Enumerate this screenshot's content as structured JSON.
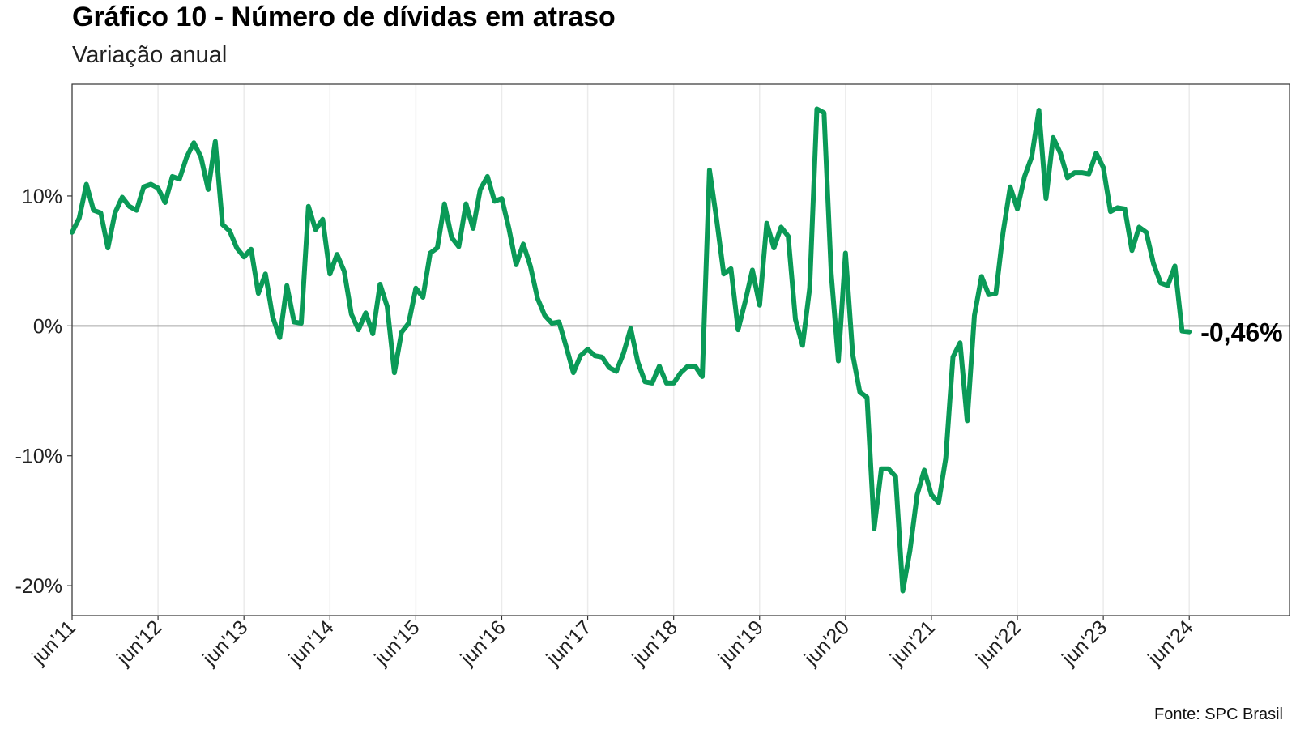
{
  "chart_data": {
    "type": "line",
    "title": "Gráfico 10 - Número de dívidas em atraso",
    "subtitle": "Variação anual",
    "source": "Fonte: SPC Brasil",
    "xlabel": "",
    "ylabel": "",
    "x_ticks": [
      "jun'11",
      "jun'12",
      "jun'13",
      "jun'14",
      "jun'15",
      "jun'16",
      "jun'17",
      "jun'18",
      "jun'19",
      "jun'20",
      "jun'21",
      "jun'22",
      "jun'23",
      "jun'24"
    ],
    "y_ticks": [
      {
        "value": 10,
        "label": "10%"
      },
      {
        "value": 0,
        "label": "0%"
      },
      {
        "value": -10,
        "label": "-10%"
      },
      {
        "value": -20,
        "label": "-20%"
      }
    ],
    "ylim": [
      -22.3,
      18.6
    ],
    "xlim": [
      "2011-06",
      "2025-08"
    ],
    "grid": true,
    "zero_line": true,
    "line_color": "#0a9a57",
    "end_label": "-0,46%",
    "series": [
      {
        "x": [
          "2011-06",
          "2011-07",
          "2011-08",
          "2011-09",
          "2011-10",
          "2011-11",
          "2011-12",
          "2012-01",
          "2012-02",
          "2012-03",
          "2012-04",
          "2012-05",
          "2012-06",
          "2012-07",
          "2012-08",
          "2012-09",
          "2012-10",
          "2012-11",
          "2012-12",
          "2013-01",
          "2013-02",
          "2013-03",
          "2013-04",
          "2013-05",
          "2013-06",
          "2013-07",
          "2013-08",
          "2013-09",
          "2013-10",
          "2013-11",
          "2013-12",
          "2014-01",
          "2014-02",
          "2014-03",
          "2014-04",
          "2014-05",
          "2014-06",
          "2014-07",
          "2014-08",
          "2014-09",
          "2014-10",
          "2014-11",
          "2014-12",
          "2015-01",
          "2015-02",
          "2015-03",
          "2015-04",
          "2015-05",
          "2015-06",
          "2015-07",
          "2015-08",
          "2015-09",
          "2015-10",
          "2015-11",
          "2015-12",
          "2016-01",
          "2016-02",
          "2016-03",
          "2016-04",
          "2016-05",
          "2016-06",
          "2016-07",
          "2016-08",
          "2016-09",
          "2016-10",
          "2016-11",
          "2016-12",
          "2017-01",
          "2017-02",
          "2017-03",
          "2017-04",
          "2017-05",
          "2017-06",
          "2017-07",
          "2017-08",
          "2017-09",
          "2017-10",
          "2017-11",
          "2017-12",
          "2018-01",
          "2018-02",
          "2018-03",
          "2018-04",
          "2018-05",
          "2018-06",
          "2018-07",
          "2018-08",
          "2018-09",
          "2018-10",
          "2018-11",
          "2018-12",
          "2019-01",
          "2019-02",
          "2019-03",
          "2019-04",
          "2019-05",
          "2019-06",
          "2019-07",
          "2019-08",
          "2019-09",
          "2019-10",
          "2019-11",
          "2019-12",
          "2020-01",
          "2020-02",
          "2020-03",
          "2020-04",
          "2020-05",
          "2020-06",
          "2020-07",
          "2020-08",
          "2020-09",
          "2020-10",
          "2020-11",
          "2020-12",
          "2021-01",
          "2021-02",
          "2021-03",
          "2021-04",
          "2021-05",
          "2021-06",
          "2021-07",
          "2021-08",
          "2021-09",
          "2021-10",
          "2021-11",
          "2021-12",
          "2022-01",
          "2022-02",
          "2022-03",
          "2022-04",
          "2022-05",
          "2022-06",
          "2022-07",
          "2022-08",
          "2022-09",
          "2022-10",
          "2022-11",
          "2022-12",
          "2023-01",
          "2023-02",
          "2023-03",
          "2023-04",
          "2023-05",
          "2023-06",
          "2023-07",
          "2023-08",
          "2023-09",
          "2023-10",
          "2023-11",
          "2023-12",
          "2024-01",
          "2024-02",
          "2024-03",
          "2024-04",
          "2024-05",
          "2024-06"
        ],
        "values": [
          7.2,
          8.3,
          10.9,
          8.9,
          8.7,
          6.0,
          8.7,
          9.9,
          9.2,
          8.9,
          10.7,
          10.9,
          10.6,
          9.5,
          11.5,
          11.3,
          13.0,
          14.1,
          13.0,
          10.5,
          14.2,
          7.8,
          7.3,
          6.0,
          5.3,
          5.9,
          2.5,
          4.0,
          0.7,
          -0.9,
          3.1,
          0.3,
          0.2,
          9.2,
          7.4,
          8.2,
          4.0,
          5.5,
          4.2,
          0.9,
          -0.3,
          1.0,
          -0.6,
          3.2,
          1.5,
          -3.6,
          -0.5,
          0.2,
          2.9,
          2.2,
          5.6,
          6.0,
          9.4,
          6.8,
          6.1,
          9.4,
          7.5,
          10.5,
          11.5,
          9.6,
          9.8,
          7.5,
          4.7,
          6.3,
          4.6,
          2.1,
          0.8,
          0.2,
          0.3,
          -1.6,
          -3.6,
          -2.3,
          -1.8,
          -2.3,
          -2.4,
          -3.2,
          -3.5,
          -2.1,
          -0.2,
          -2.8,
          -4.3,
          -4.4,
          -3.1,
          -4.4,
          -4.4,
          -3.6,
          -3.1,
          -3.1,
          -3.9,
          12.0,
          8.2,
          4.0,
          4.4,
          -0.3,
          1.9,
          4.3,
          1.6,
          7.9,
          6.0,
          7.6,
          6.9,
          0.5,
          -1.5,
          2.9,
          16.7,
          16.4,
          4.0,
          -2.7,
          5.6,
          -2.2,
          -5.1,
          -5.5,
          -15.6,
          -11.0,
          -11.0,
          -11.6,
          -20.4,
          -17.3,
          -13.0,
          -11.1,
          -13.0,
          -13.6,
          -10.2,
          -2.4,
          -1.3,
          -7.3,
          0.8,
          3.8,
          2.4,
          2.5,
          7.2,
          10.7,
          9.0,
          11.5,
          13.0,
          16.6,
          9.8,
          14.5,
          13.3,
          11.4,
          11.8,
          11.8,
          11.7,
          13.3,
          12.2,
          8.8,
          9.1,
          9.0,
          5.8,
          7.6,
          7.2,
          4.8,
          3.3,
          3.1,
          4.6,
          -0.4,
          -0.46
        ]
      }
    ]
  }
}
